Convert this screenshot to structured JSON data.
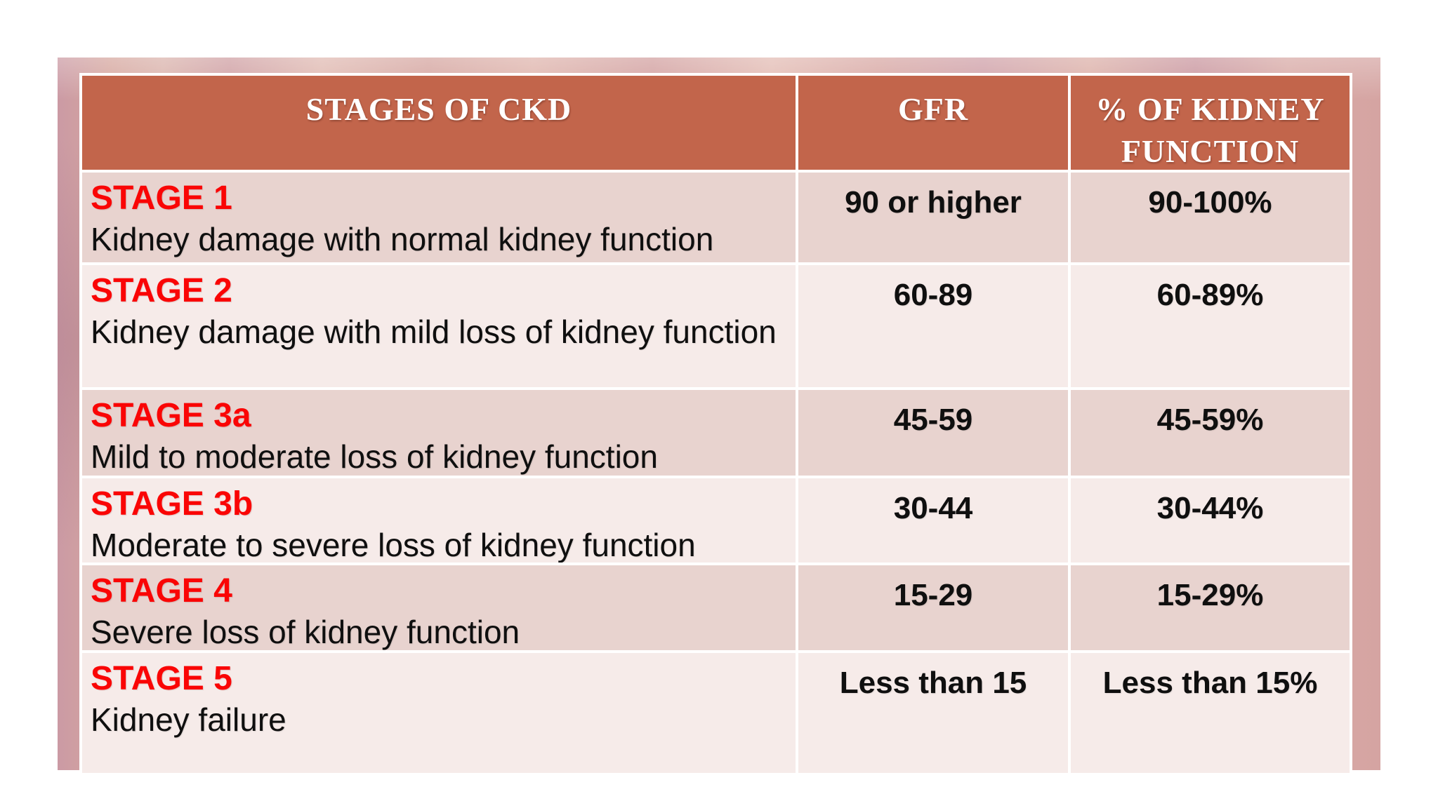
{
  "slide": {
    "colors": {
      "header_bg": "#c2654b",
      "row_dark": "#e8d3cf",
      "row_light": "#f6ebe9",
      "stage_red": "#fa0505",
      "body_text": "#0f0f0f",
      "header_text": "#ffffff",
      "slide_pink": "#d5a7a2"
    },
    "table": {
      "headers": [
        {
          "label": "STAGES OF CKD"
        },
        {
          "label": "GFR"
        },
        {
          "label": "% OF KIDNEY FUNCTION"
        }
      ],
      "rows": [
        {
          "stage": "STAGE 1",
          "description": "Kidney damage with normal kidney function",
          "gfr": "90 or higher",
          "percent": "90-100%"
        },
        {
          "stage": "STAGE 2",
          "description": "Kidney damage with mild loss of kidney function",
          "gfr": "60-89",
          "percent": "60-89%"
        },
        {
          "stage": "STAGE 3a",
          "description": "Mild to moderate loss of kidney function",
          "gfr": "45-59",
          "percent": "45-59%"
        },
        {
          "stage": "STAGE 3b",
          "description": "Moderate to severe loss of kidney function",
          "gfr": "30-44",
          "percent": "30-44%"
        },
        {
          "stage": "STAGE 4",
          "description": "Severe loss of kidney function",
          "gfr": "15-29",
          "percent": "15-29%"
        },
        {
          "stage": "STAGE 5",
          "description": "Kidney failure",
          "gfr": "Less than 15",
          "percent": "Less than 15%"
        }
      ]
    }
  }
}
